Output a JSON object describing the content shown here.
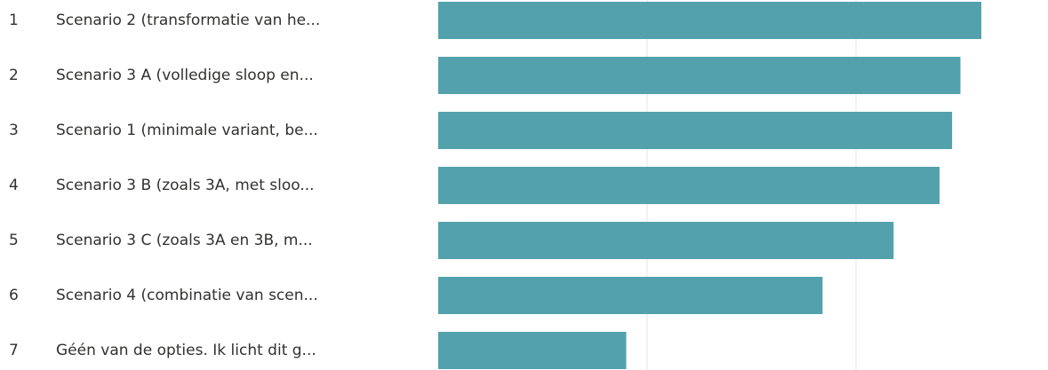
{
  "chart_data": {
    "type": "bar",
    "orientation": "horizontal",
    "title": "",
    "xlabel": "",
    "ylabel": "",
    "xlim": [
      0,
      13
    ],
    "grid": true,
    "gridlines": [
      0,
      5,
      10
    ],
    "bar_color": "#53a1ac",
    "gridline_color": "#e6e6e6",
    "categories": [
      {
        "rank": "1",
        "label": "Scenario 2 (transformatie van he..."
      },
      {
        "rank": "2",
        "label": "Scenario 3 A (volledige sloop en..."
      },
      {
        "rank": "3",
        "label": "Scenario 1 (minimale variant, be..."
      },
      {
        "rank": "4",
        "label": "Scenario 3 B (zoals 3A, met sloo..."
      },
      {
        "rank": "5",
        "label": "Scenario 3 C (zoals 3A en 3B, m..."
      },
      {
        "rank": "6",
        "label": "Scenario 4 (combinatie van scen..."
      },
      {
        "rank": "7",
        "label": "Géén van de opties. Ik licht dit g..."
      }
    ],
    "values": [
      13.0,
      12.5,
      12.3,
      12.0,
      10.9,
      9.2,
      4.5
    ]
  }
}
